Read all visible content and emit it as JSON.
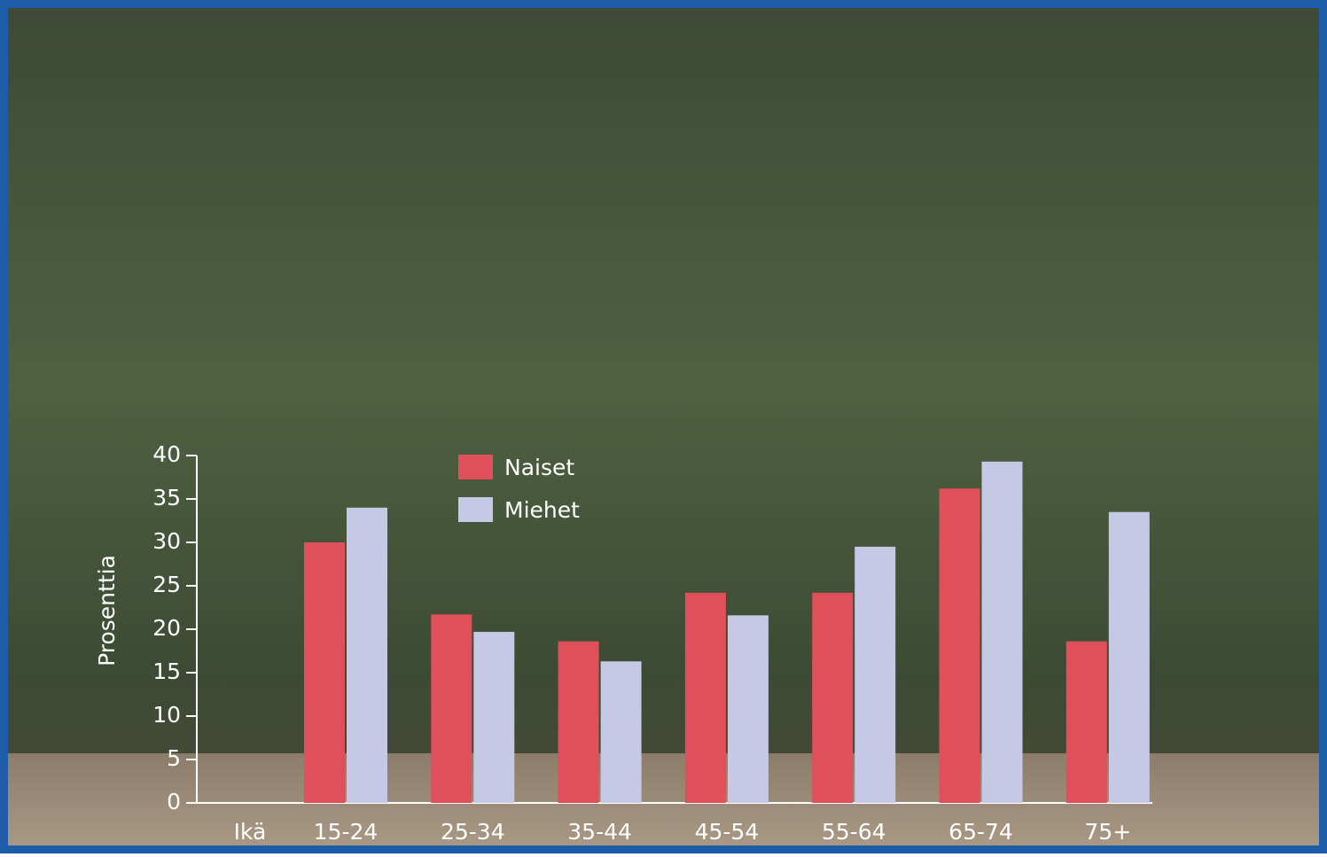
{
  "chart_data": {
    "type": "bar",
    "ylabel": "Prosenttia",
    "xlabel": "Ikä",
    "categories": [
      "15-24",
      "25-34",
      "35-44",
      "45-54",
      "55-64",
      "65-74",
      "75+"
    ],
    "series": [
      {
        "name": "Naiset",
        "color": "#e0505a",
        "values": [
          30,
          21.7,
          18.6,
          24.2,
          24.2,
          36.2,
          18.6
        ]
      },
      {
        "name": "Miehet",
        "color": "#c5c9e6",
        "values": [
          34,
          19.7,
          16.3,
          21.6,
          29.5,
          39.3,
          33.5
        ]
      }
    ],
    "ylim": [
      0,
      40
    ],
    "yticks": [
      0,
      5,
      10,
      15,
      20,
      25,
      30,
      35,
      40
    ],
    "legend": "upper-left"
  }
}
